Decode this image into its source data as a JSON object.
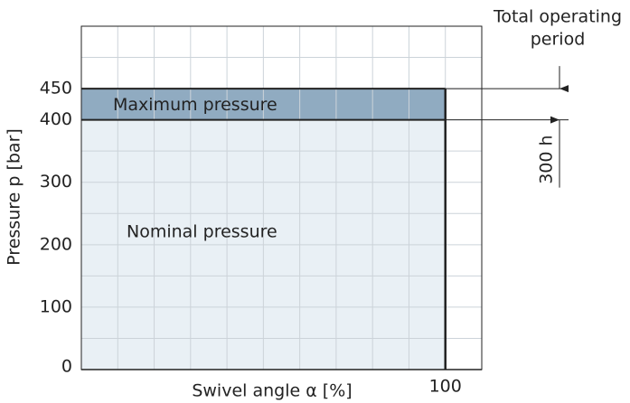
{
  "chart_data": {
    "type": "pressure_regions",
    "xlabel": "Swivel angle α [%]",
    "ylabel": "Pressure p [bar]",
    "xlim": [
      0,
      110
    ],
    "ylim": [
      0,
      550
    ],
    "xticks": [
      100
    ],
    "yticks": [
      0,
      100,
      200,
      300,
      400,
      450
    ],
    "xgrid": [
      10,
      20,
      30,
      40,
      50,
      60,
      70,
      80,
      90,
      100
    ],
    "ygrid": [
      50,
      100,
      150,
      200,
      250,
      300,
      350,
      400,
      450,
      500
    ],
    "grid": true,
    "regions": [
      {
        "name": "Nominal pressure",
        "x": [
          0,
          100
        ],
        "y": [
          0,
          400
        ],
        "color": "#e9f0f5"
      },
      {
        "name": "Maximum pressure",
        "x": [
          0,
          100
        ],
        "y": [
          400,
          450
        ],
        "color": "#90abc1"
      }
    ],
    "annotations": {
      "period_title": [
        "Total operating",
        "period"
      ],
      "duration": "300 h"
    }
  }
}
